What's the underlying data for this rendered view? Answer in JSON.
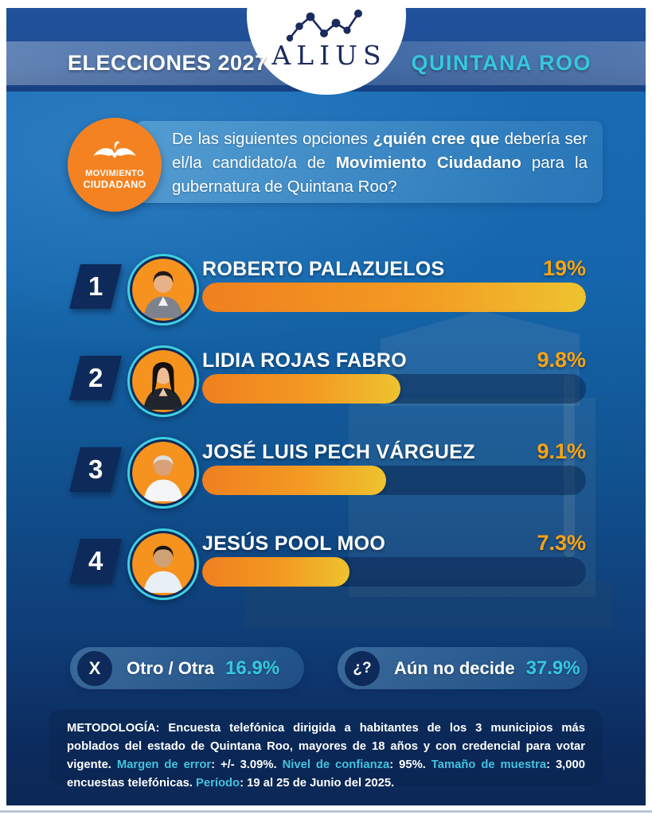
{
  "header": {
    "brand": "ALIUS",
    "left_title": "ELECCIONES 2027",
    "right_title": "QUINTANA ROO"
  },
  "party_badge": {
    "icon": "movimiento-ciudadano-eagle-icon",
    "line1": "MOVIMIENTO",
    "line2": "CIUDADANO",
    "color": "#F58220"
  },
  "question": {
    "seg1": "De las siguientes opciones ",
    "seg2": "¿quién cree que ",
    "seg3": "debería ser el/la candidato/a de ",
    "seg4": "Movimiento Ciudadano ",
    "seg5": "para la gubernatura de Quintana Roo?"
  },
  "chart_data": {
    "type": "bar",
    "orientation": "horizontal",
    "title": "De las siguientes opciones ¿quién cree que debería ser el/la candidato/a de Movimiento Ciudadano para la gubernatura de Quintana Roo?",
    "categories": [
      "ROBERTO PALAZUELOS",
      "LIDIA ROJAS FABRO",
      "JOSÉ LUIS PECH VÁRGUEZ",
      "JESÚS POOL MOO",
      "Otro / Otra",
      "Aún no decide"
    ],
    "values": [
      19,
      9.8,
      9.1,
      7.3,
      16.9,
      37.9
    ],
    "value_labels": [
      "19%",
      "9.8%",
      "9.1%",
      "7.3%",
      "16.9%",
      "37.9%"
    ],
    "bar_scale_max": 19,
    "bar_color_start": "#F0801F",
    "bar_color_end": "#EEC32F",
    "value_label_color": "#F7A315",
    "grid": false,
    "legend": false
  },
  "rows": [
    {
      "rank": "1",
      "name": "ROBERTO PALAZUELOS",
      "pct": "19%",
      "value": 19
    },
    {
      "rank": "2",
      "name": "LIDIA ROJAS FABRO",
      "pct": "9.8%",
      "value": 9.8
    },
    {
      "rank": "3",
      "name": "JOSÉ LUIS PECH VÁRGUEZ",
      "pct": "9.1%",
      "value": 9.1
    },
    {
      "rank": "4",
      "name": "JESÚS POOL MOO",
      "pct": "7.3%",
      "value": 7.3
    }
  ],
  "others": {
    "otro": {
      "icon": "X",
      "label": "Otro / Otra",
      "pct": "16.9%"
    },
    "undecided": {
      "icon": "¿?",
      "label": "Aún no decide",
      "pct": "37.9%"
    }
  },
  "methodology": {
    "m1": "METODOLOGÍA: ",
    "m2": "Encuesta telefónica dirigida a habitantes de los 3 municipios más poblados del estado de Quintana Roo, mayores de 18 años y con credencial para votar vigente. ",
    "m3": "Margen de error",
    "m4": ": +/- 3.09%. ",
    "m5": "Nivel de confianza",
    "m6": ": 95%. ",
    "m7": "Tamaño de muestra",
    "m8": ": 3,000 encuestas telefónicas. ",
    "m9": "Período",
    "m10": ": 19 al 25 de Junio del 2025."
  },
  "colors": {
    "accent_cyan": "#35C8DE",
    "accent_orange": "#F7A315",
    "navy": "#0D2A5A",
    "header_blue": "#1E4F96"
  }
}
